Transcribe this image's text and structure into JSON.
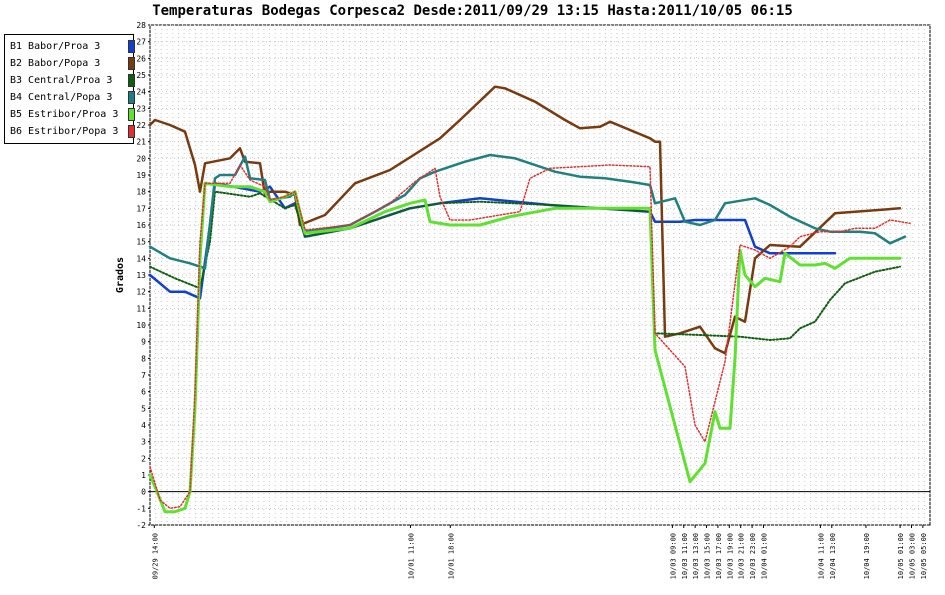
{
  "chart_data": {
    "type": "line",
    "title": "Temperaturas Bodegas Corpesca2 Desde:2011/09/29 13:15 Hasta:2011/10/05 06:15",
    "ylabel": "Grados",
    "xlabel": "",
    "ylim": [
      -2,
      28
    ],
    "yticks": [
      -2,
      -1,
      0,
      1,
      2,
      3,
      4,
      5,
      6,
      7,
      8,
      9,
      10,
      11,
      12,
      13,
      14,
      15,
      16,
      17,
      18,
      19,
      20,
      21,
      22,
      23,
      24,
      25,
      26,
      27,
      28
    ],
    "x_range_hours": [
      0,
      137
    ],
    "xticks": [
      {
        "label": "09/29 14:00",
        "h": 0.75
      },
      {
        "label": "10/01 11:00",
        "h": 45.75
      },
      {
        "label": "10/01 18:00",
        "h": 52.75
      },
      {
        "label": "10/03 09:00",
        "h": 91.75
      },
      {
        "label": "10/03 11:00",
        "h": 93.75
      },
      {
        "label": "10/03 13:00",
        "h": 95.75
      },
      {
        "label": "10/03 15:00",
        "h": 97.75
      },
      {
        "label": "10/03 17:00",
        "h": 99.75
      },
      {
        "label": "10/03 19:00",
        "h": 101.75
      },
      {
        "label": "10/03 21:00",
        "h": 103.75
      },
      {
        "label": "10/03 23:00",
        "h": 105.75
      },
      {
        "label": "10/04 01:00",
        "h": 107.75
      },
      {
        "label": "10/04 11:00",
        "h": 117.75
      },
      {
        "label": "10/04 13:00",
        "h": 119.75
      },
      {
        "label": "10/04 19:00",
        "h": 125.75
      },
      {
        "label": "10/05 01:00",
        "h": 131.75
      },
      {
        "label": "10/05 03:00",
        "h": 133.75
      },
      {
        "label": "10/05 05:00",
        "h": 135.75
      }
    ],
    "grid": true,
    "legend_position": "top-left",
    "series": [
      {
        "name": "B1 Babor/Proa  3",
        "color": "#1040d0",
        "style": "solid",
        "width": 2.5,
        "points": [
          [
            0,
            13
          ],
          [
            4,
            12
          ],
          [
            7,
            12
          ],
          [
            10,
            11.6
          ],
          [
            12,
            16
          ],
          [
            13,
            18.5
          ],
          [
            22,
            18
          ],
          [
            24,
            18.3
          ],
          [
            27,
            17
          ],
          [
            29,
            17.3
          ],
          [
            31,
            15.3
          ],
          [
            40,
            15.8
          ],
          [
            52,
            17
          ],
          [
            58,
            17.3
          ],
          [
            66,
            17.6
          ],
          [
            80,
            17.2
          ],
          [
            100,
            16.8
          ],
          [
            101,
            16.2
          ],
          [
            106,
            16.2
          ],
          [
            109,
            16.3
          ],
          [
            119,
            16.3
          ],
          [
            121,
            14.7
          ],
          [
            124,
            14.3
          ],
          [
            137,
            14.3
          ]
        ]
      },
      {
        "name": "B2 Babor/Popa  3",
        "color": "#7a3a10",
        "style": "solid",
        "width": 2.5,
        "points": [
          [
            0,
            22
          ],
          [
            1,
            22.3
          ],
          [
            4,
            22
          ],
          [
            7,
            21.6
          ],
          [
            9,
            19.6
          ],
          [
            10,
            18
          ],
          [
            11,
            19.7
          ],
          [
            16,
            20
          ],
          [
            18,
            20.6
          ],
          [
            19,
            19.8
          ],
          [
            22,
            19.7
          ],
          [
            23,
            17.8
          ],
          [
            24,
            18
          ],
          [
            27,
            18
          ],
          [
            29,
            17.8
          ],
          [
            30,
            16
          ],
          [
            35,
            16.6
          ],
          [
            41,
            18.5
          ],
          [
            48,
            19.3
          ],
          [
            58,
            21.2
          ],
          [
            62,
            22.3
          ],
          [
            69,
            24.3
          ],
          [
            71,
            24.2
          ],
          [
            77,
            23.4
          ],
          [
            83,
            22.3
          ],
          [
            86,
            21.8
          ],
          [
            90,
            21.9
          ],
          [
            92,
            22.2
          ],
          [
            100,
            21.2
          ],
          [
            101,
            21
          ],
          [
            102,
            21
          ],
          [
            103,
            9.3
          ],
          [
            106,
            9.5
          ],
          [
            110,
            9.9
          ],
          [
            113,
            8.6
          ],
          [
            115,
            8.3
          ],
          [
            117,
            10.5
          ],
          [
            119,
            10.2
          ],
          [
            121,
            14
          ],
          [
            124,
            14.8
          ],
          [
            130,
            14.7
          ],
          [
            137,
            16.7
          ],
          [
            150,
            17
          ]
        ]
      },
      {
        "name": "B3 Central/Proa  3",
        "color": "#106010",
        "style": "dotted",
        "width": 2,
        "points": [
          [
            0,
            13.5
          ],
          [
            5,
            12.8
          ],
          [
            10,
            12.2
          ],
          [
            12,
            15
          ],
          [
            13,
            18
          ],
          [
            20,
            17.7
          ],
          [
            22,
            17.9
          ],
          [
            27,
            17
          ],
          [
            29,
            17.2
          ],
          [
            31,
            15.3
          ],
          [
            40,
            15.8
          ],
          [
            52,
            17
          ],
          [
            58,
            17.3
          ],
          [
            66,
            17.4
          ],
          [
            80,
            17.2
          ],
          [
            100,
            16.8
          ],
          [
            101,
            9.5
          ],
          [
            110,
            9.4
          ],
          [
            118,
            9.3
          ],
          [
            124,
            9.1
          ],
          [
            128,
            9.2
          ],
          [
            130,
            9.8
          ],
          [
            133,
            10.2
          ],
          [
            136,
            11.5
          ],
          [
            139,
            12.5
          ],
          [
            145,
            13.2
          ],
          [
            150,
            13.5
          ]
        ]
      },
      {
        "name": "B4 Central/Popa  3",
        "color": "#208080",
        "style": "solid",
        "width": 2.5,
        "points": [
          [
            0,
            14.7
          ],
          [
            4,
            14
          ],
          [
            8,
            13.7
          ],
          [
            11,
            13.4
          ],
          [
            13,
            18.8
          ],
          [
            14,
            19
          ],
          [
            17,
            19
          ],
          [
            19,
            20.1
          ],
          [
            20,
            18.8
          ],
          [
            23,
            18.7
          ],
          [
            24,
            17.5
          ],
          [
            28,
            17.7
          ],
          [
            29,
            18
          ],
          [
            31,
            15.6
          ],
          [
            40,
            16
          ],
          [
            45,
            16.8
          ],
          [
            51,
            17.8
          ],
          [
            54,
            18.8
          ],
          [
            57,
            19.2
          ],
          [
            63,
            19.8
          ],
          [
            68,
            20.2
          ],
          [
            73,
            20
          ],
          [
            81,
            19.2
          ],
          [
            86,
            18.9
          ],
          [
            91,
            18.8
          ],
          [
            96,
            18.6
          ],
          [
            100,
            18.4
          ],
          [
            101,
            17.3
          ],
          [
            105,
            17.6
          ],
          [
            107,
            16.2
          ],
          [
            110,
            16
          ],
          [
            113,
            16.3
          ],
          [
            115,
            17.3
          ],
          [
            121,
            17.6
          ],
          [
            124,
            17.2
          ],
          [
            128,
            16.5
          ],
          [
            133,
            15.8
          ],
          [
            136,
            15.6
          ],
          [
            142,
            15.6
          ],
          [
            145,
            15.5
          ],
          [
            148,
            14.9
          ],
          [
            151,
            15.3
          ]
        ]
      },
      {
        "name": "B5 Estribor/Proa  3",
        "color": "#60e030",
        "style": "solid",
        "width": 3,
        "points": [
          [
            0,
            1
          ],
          [
            1,
            0.3
          ],
          [
            3,
            -1.2
          ],
          [
            5,
            -1.2
          ],
          [
            7,
            -1
          ],
          [
            8,
            0
          ],
          [
            9,
            5
          ],
          [
            10,
            14
          ],
          [
            11,
            18.5
          ],
          [
            16,
            18.3
          ],
          [
            20,
            18.3
          ],
          [
            23,
            18
          ],
          [
            24,
            17.4
          ],
          [
            27,
            17.7
          ],
          [
            29,
            18
          ],
          [
            31,
            15.5
          ],
          [
            40,
            15.8
          ],
          [
            47,
            16.8
          ],
          [
            52,
            17.3
          ],
          [
            55,
            17.5
          ],
          [
            56,
            16.2
          ],
          [
            60,
            16
          ],
          [
            66,
            16
          ],
          [
            72,
            16.5
          ],
          [
            81,
            17
          ],
          [
            89,
            17
          ],
          [
            100,
            17
          ],
          [
            101,
            8.5
          ],
          [
            108,
            0.6
          ],
          [
            111,
            1.7
          ],
          [
            113,
            4.8
          ],
          [
            114,
            3.8
          ],
          [
            116,
            3.8
          ],
          [
            117,
            8
          ],
          [
            118,
            14.5
          ],
          [
            119,
            13
          ],
          [
            121,
            12.3
          ],
          [
            123,
            12.8
          ],
          [
            126,
            12.6
          ],
          [
            127,
            14.3
          ],
          [
            130,
            13.6
          ],
          [
            133,
            13.6
          ],
          [
            135,
            13.7
          ],
          [
            137,
            13.4
          ],
          [
            140,
            14
          ],
          [
            150,
            14
          ]
        ]
      },
      {
        "name": "B6 Estribor/Popa 3",
        "color": "#e03030",
        "style": "dotted",
        "width": 1.5,
        "points": [
          [
            0,
            1.5
          ],
          [
            2,
            -0.5
          ],
          [
            4,
            -1
          ],
          [
            6,
            -0.9
          ],
          [
            8,
            0
          ],
          [
            9,
            6
          ],
          [
            10,
            15
          ],
          [
            11,
            18.5
          ],
          [
            16,
            18.5
          ],
          [
            18,
            19.6
          ],
          [
            20,
            18.7
          ],
          [
            23,
            18.3
          ],
          [
            24,
            17.5
          ],
          [
            27,
            17.7
          ],
          [
            29,
            18
          ],
          [
            31,
            15.7
          ],
          [
            40,
            16
          ],
          [
            48,
            17.3
          ],
          [
            53,
            18.6
          ],
          [
            57,
            19.4
          ],
          [
            58,
            17.7
          ],
          [
            60,
            16.3
          ],
          [
            64,
            16.3
          ],
          [
            70,
            16.6
          ],
          [
            74,
            16.8
          ],
          [
            76,
            18.8
          ],
          [
            80,
            19.4
          ],
          [
            86,
            19.5
          ],
          [
            92,
            19.6
          ],
          [
            100,
            19.5
          ],
          [
            101,
            9.5
          ],
          [
            107,
            7.5
          ],
          [
            109,
            4
          ],
          [
            111,
            3
          ],
          [
            115,
            7.8
          ],
          [
            118,
            14.8
          ],
          [
            121,
            14.5
          ],
          [
            124,
            14
          ],
          [
            128,
            14.7
          ],
          [
            130,
            15.3
          ],
          [
            134,
            15.6
          ],
          [
            138,
            15.6
          ],
          [
            141,
            15.8
          ],
          [
            145,
            15.8
          ],
          [
            148,
            16.3
          ],
          [
            152,
            16.1
          ]
        ]
      }
    ]
  }
}
